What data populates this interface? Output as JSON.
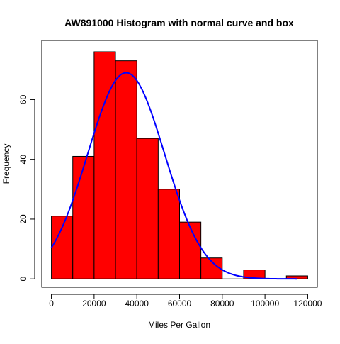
{
  "chart_data": {
    "type": "bar",
    "title": "AW891000 Histogram with normal curve and box",
    "xlabel": "Miles Per Gallon",
    "ylabel": "Frequency",
    "xlim": [
      -4500,
      124500
    ],
    "ylim": [
      -2.8,
      79.8
    ],
    "x_ticks": [
      0,
      20000,
      40000,
      60000,
      80000,
      100000,
      120000
    ],
    "x_tick_labels": [
      "0",
      "20000",
      "40000",
      "60000",
      "80000",
      "100000",
      "120000"
    ],
    "y_ticks": [
      0,
      20,
      40,
      60
    ],
    "y_tick_labels": [
      "0",
      "20",
      "40",
      "60"
    ],
    "bins": [
      {
        "start": 0,
        "end": 10000,
        "count": 21
      },
      {
        "start": 10000,
        "end": 20000,
        "count": 41
      },
      {
        "start": 20000,
        "end": 30000,
        "count": 76
      },
      {
        "start": 30000,
        "end": 40000,
        "count": 73
      },
      {
        "start": 40000,
        "end": 50000,
        "count": 47
      },
      {
        "start": 50000,
        "end": 60000,
        "count": 30
      },
      {
        "start": 60000,
        "end": 70000,
        "count": 19
      },
      {
        "start": 70000,
        "end": 80000,
        "count": 7
      },
      {
        "start": 80000,
        "end": 90000,
        "count": 0
      },
      {
        "start": 90000,
        "end": 100000,
        "count": 3
      },
      {
        "start": 100000,
        "end": 110000,
        "count": 0
      },
      {
        "start": 110000,
        "end": 120000,
        "count": 1
      }
    ],
    "normal_curve": {
      "mean": 35000,
      "sd": 18000,
      "peak": 69,
      "x_range": [
        0,
        115000
      ]
    },
    "bar_color": "#ff0000",
    "bar_border_color": "#000000",
    "curve_color": "#0000ff",
    "grid": false
  }
}
